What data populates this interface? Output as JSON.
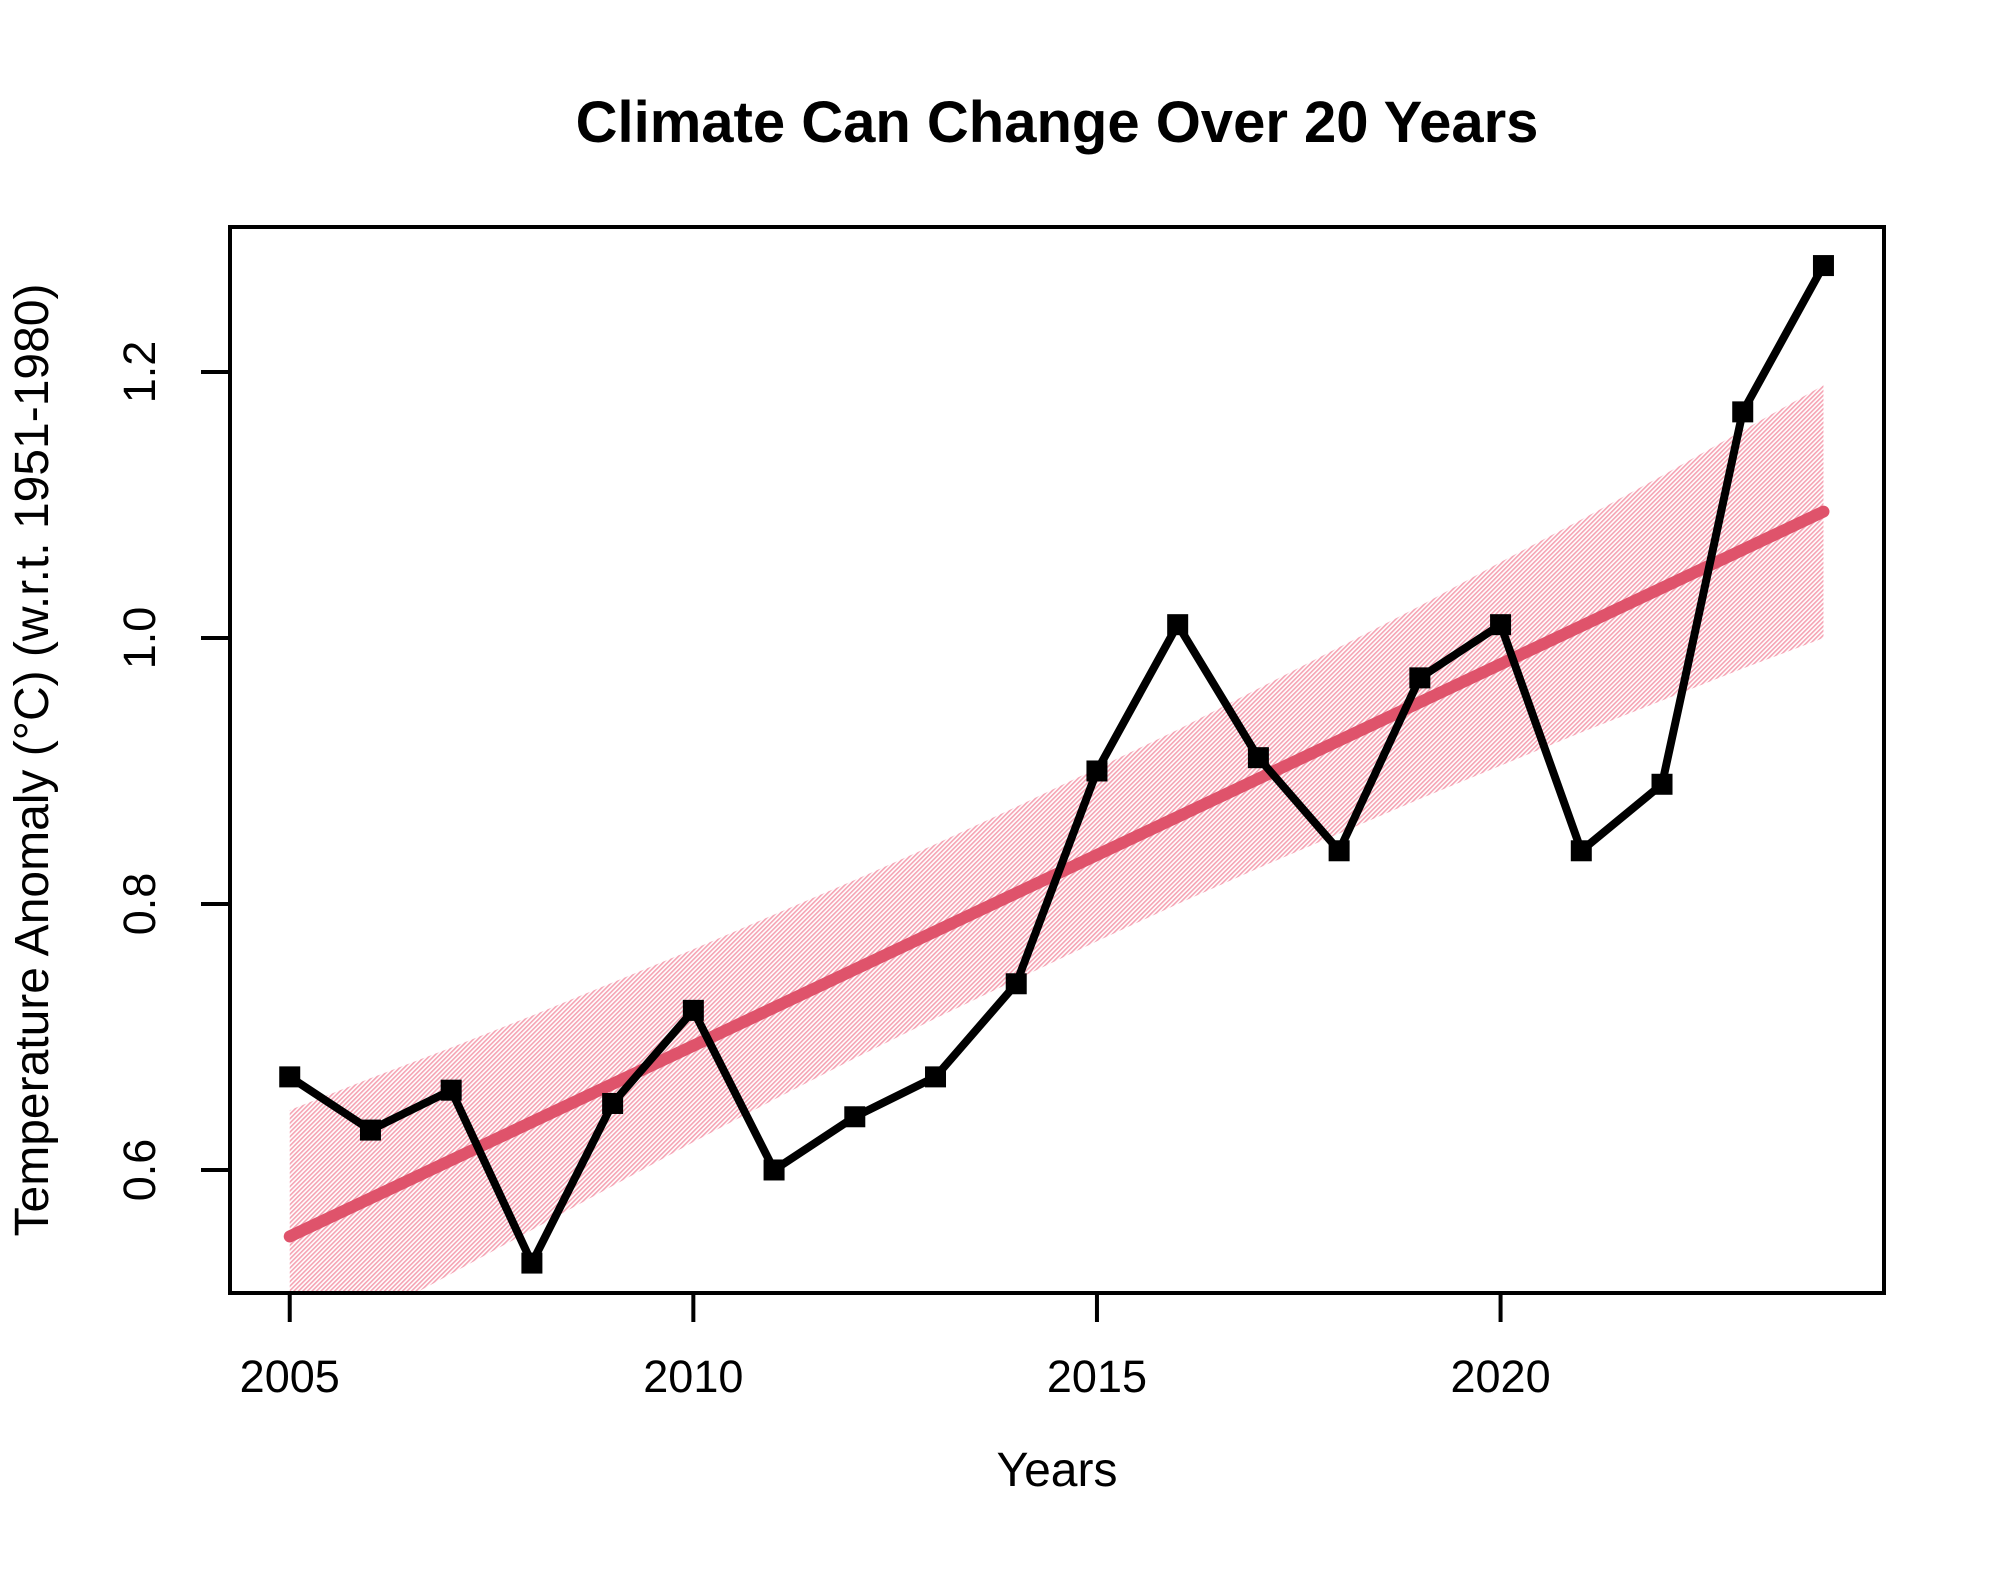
{
  "chart_data": {
    "type": "line",
    "title": "Climate Can Change Over 20 Years",
    "xlabel": "Years",
    "ylabel": "Temperature Anomaly (°C) (w.r.t. 1951-1980)",
    "xlim": [
      2004.26,
      2024.75
    ],
    "ylim": [
      0.5075,
      1.309
    ],
    "x_ticks": [
      2005,
      2010,
      2015,
      2020
    ],
    "y_ticks": [
      0.6,
      0.8,
      1.0,
      1.2
    ],
    "grid": false,
    "legend": "none",
    "colors": {
      "series": "#000000",
      "trend": "#DF536B",
      "band_hatch": "#F5A3B3",
      "background": "#ffffff"
    },
    "series": [
      {
        "name": "annual-temperature-anomaly",
        "marker": "filled-square",
        "x": [
          2005,
          2006,
          2007,
          2008,
          2009,
          2010,
          2011,
          2012,
          2013,
          2014,
          2015,
          2016,
          2017,
          2018,
          2019,
          2020,
          2021,
          2022,
          2023,
          2024
        ],
        "y": [
          0.67,
          0.63,
          0.66,
          0.53,
          0.65,
          0.72,
          0.6,
          0.64,
          0.67,
          0.74,
          0.9,
          1.01,
          0.91,
          0.84,
          0.97,
          1.01,
          0.84,
          0.89,
          1.17,
          1.28
        ]
      },
      {
        "name": "linear-trend",
        "marker": "none",
        "x": [
          2005,
          2024
        ],
        "y": [
          0.55,
          1.095
        ]
      }
    ],
    "confidence_band": {
      "style": "diagonal-hatch-45deg",
      "x": [
        2005,
        2006,
        2007,
        2008,
        2009,
        2010,
        2011,
        2012,
        2013,
        2014,
        2015,
        2016,
        2017,
        2018,
        2019,
        2020,
        2021,
        2022,
        2023,
        2024
      ],
      "top": [
        0.645,
        0.669,
        0.692,
        0.716,
        0.741,
        0.766,
        0.792,
        0.818,
        0.845,
        0.873,
        0.902,
        0.931,
        0.962,
        0.993,
        1.024,
        1.057,
        1.089,
        1.122,
        1.156,
        1.19
      ],
      "bottom": [
        0.455,
        0.489,
        0.522,
        0.555,
        0.588,
        0.621,
        0.653,
        0.684,
        0.714,
        0.743,
        0.772,
        0.8,
        0.827,
        0.853,
        0.879,
        0.904,
        0.929,
        0.953,
        0.977,
        1.0
      ]
    }
  }
}
